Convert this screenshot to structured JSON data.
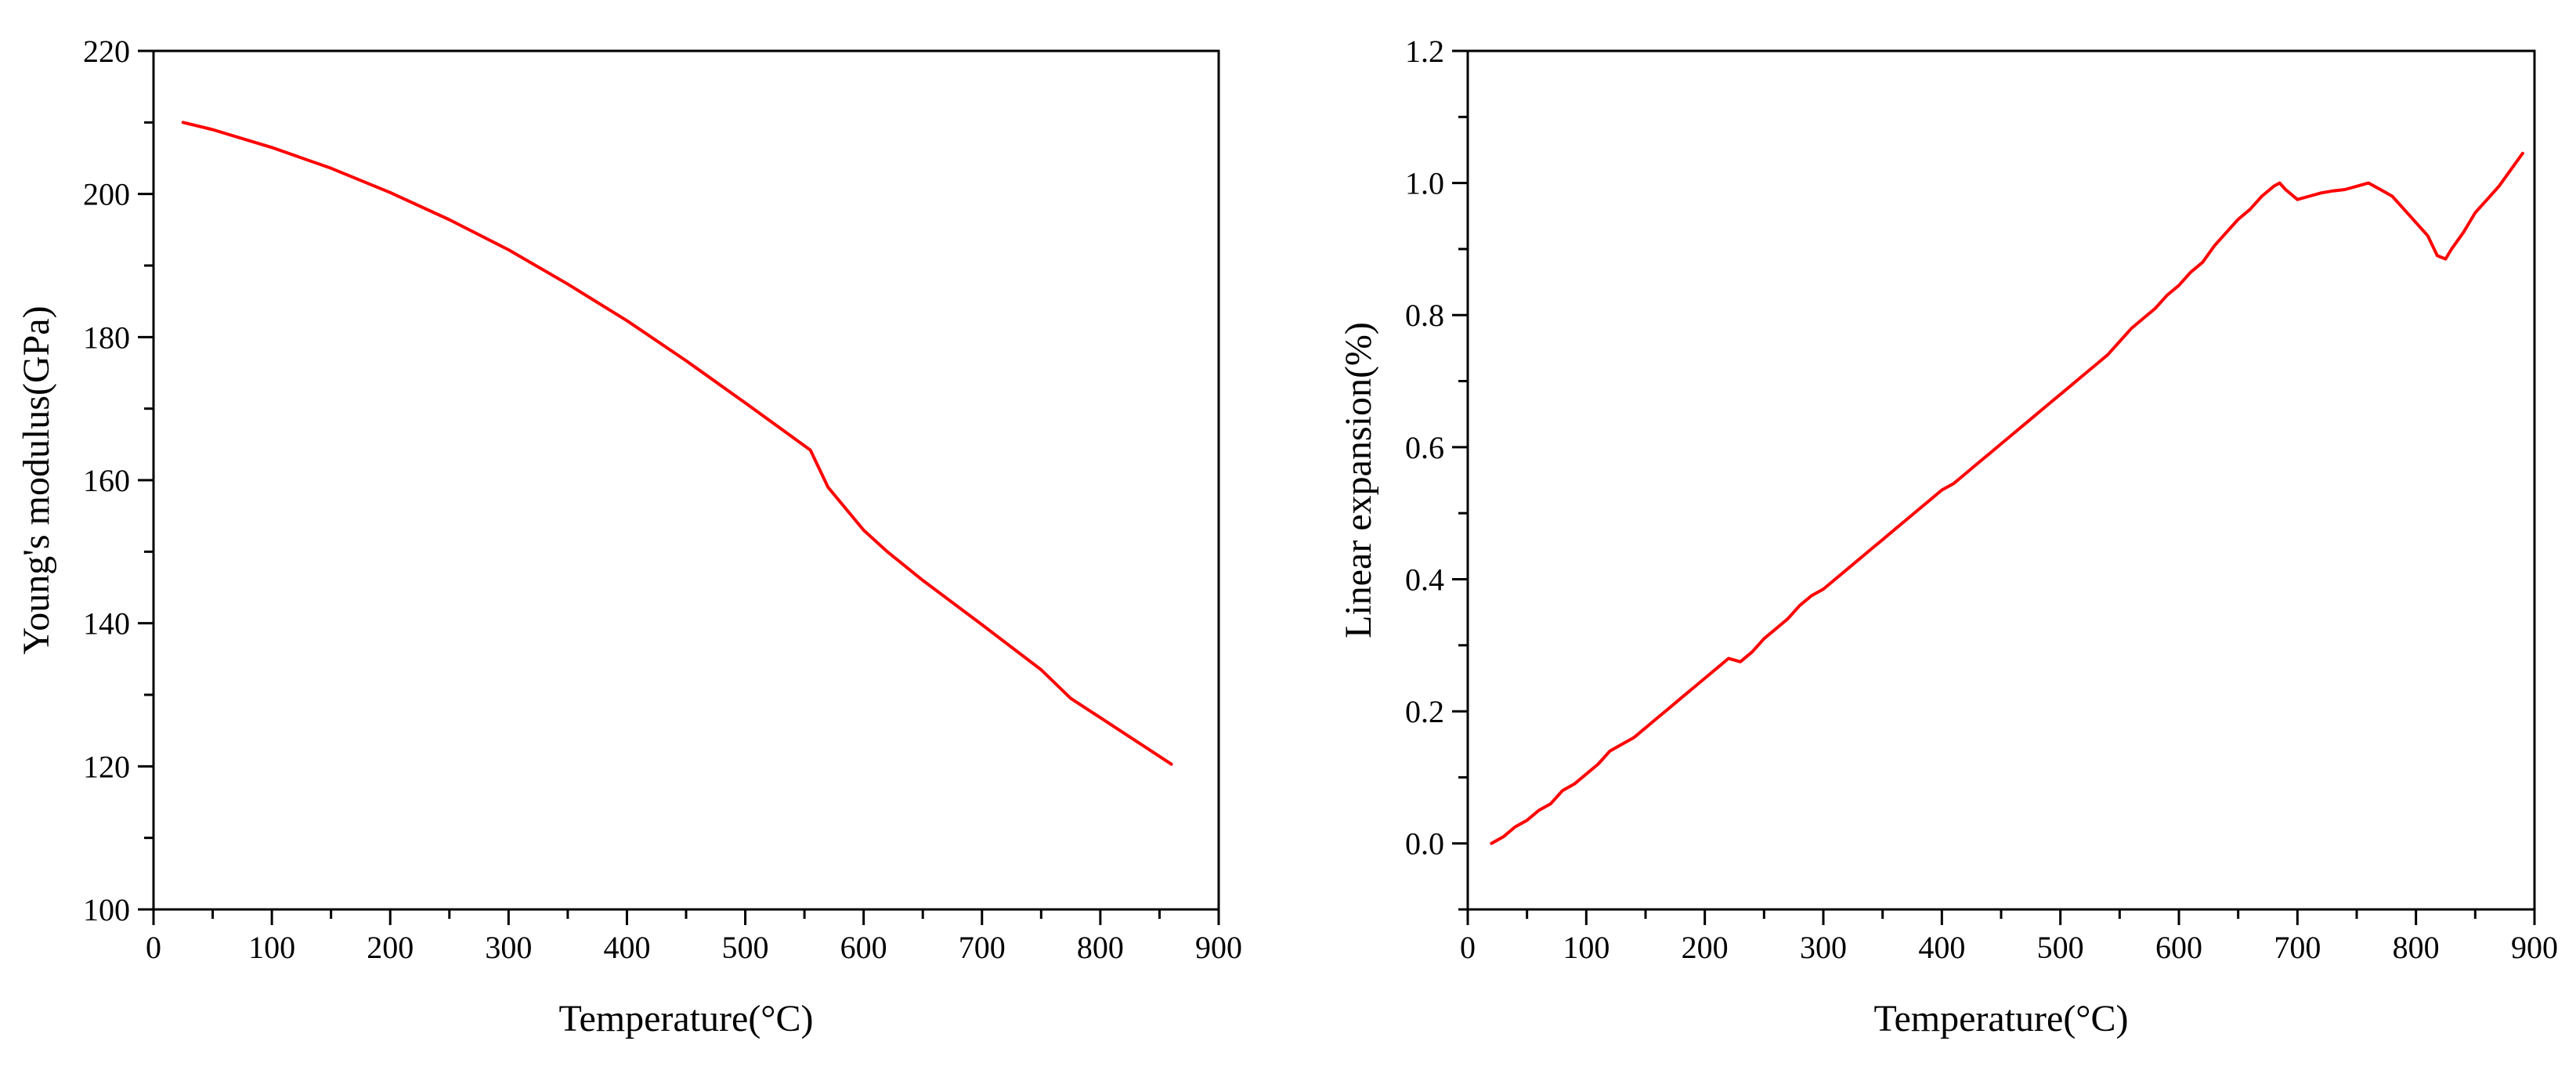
{
  "chart_data": [
    {
      "type": "line",
      "title": "",
      "xlabel": "Temperature(°C)",
      "ylabel": "Young's modulus(GPa)",
      "xlim": [
        0,
        900
      ],
      "ylim": [
        100,
        220
      ],
      "xticks": [
        0,
        100,
        200,
        300,
        400,
        500,
        600,
        700,
        800,
        900
      ],
      "yticks": [
        100,
        120,
        140,
        160,
        180,
        200,
        220
      ],
      "grid": false,
      "series": [
        {
          "name": "Young's modulus",
          "color": "#ff0000",
          "x": [
            25,
            50,
            100,
            150,
            200,
            250,
            300,
            350,
            400,
            450,
            500,
            555,
            570,
            600,
            620,
            650,
            700,
            750,
            775,
            800,
            860
          ],
          "y": [
            210,
            209,
            206.5,
            203.6,
            200.2,
            196.4,
            192.2,
            187.4,
            182.3,
            176.7,
            170.8,
            164.2,
            159,
            153,
            150,
            146,
            139.8,
            133.5,
            129.5,
            126.8,
            120.3
          ]
        }
      ]
    },
    {
      "type": "line",
      "title": "",
      "xlabel": "Temperature(°C)",
      "ylabel": "Linear expansion(%)",
      "xlim": [
        0,
        900
      ],
      "ylim": [
        -0.1,
        1.2
      ],
      "xticks": [
        0,
        100,
        200,
        300,
        400,
        500,
        600,
        700,
        800,
        900
      ],
      "yticks": [
        0.0,
        0.2,
        0.4,
        0.6,
        0.8,
        1.0,
        1.2
      ],
      "grid": false,
      "series": [
        {
          "name": "Linear expansion",
          "color": "#ff0000",
          "x": [
            20,
            30,
            40,
            50,
            60,
            70,
            80,
            90,
            100,
            110,
            120,
            130,
            140,
            150,
            160,
            170,
            180,
            190,
            200,
            210,
            220,
            230,
            240,
            250,
            260,
            270,
            280,
            290,
            300,
            310,
            320,
            330,
            340,
            350,
            360,
            370,
            380,
            390,
            400,
            410,
            420,
            430,
            440,
            450,
            460,
            470,
            480,
            490,
            500,
            510,
            520,
            530,
            540,
            550,
            560,
            570,
            580,
            590,
            600,
            610,
            620,
            630,
            640,
            650,
            660,
            670,
            680,
            685,
            690,
            700,
            710,
            720,
            730,
            740,
            750,
            760,
            770,
            780,
            790,
            800,
            810,
            818,
            825,
            830,
            840,
            850,
            860,
            870,
            880,
            890
          ],
          "y": [
            0.0,
            0.01,
            0.025,
            0.035,
            0.05,
            0.06,
            0.08,
            0.09,
            0.105,
            0.12,
            0.14,
            0.15,
            0.16,
            0.175,
            0.19,
            0.205,
            0.22,
            0.235,
            0.25,
            0.265,
            0.28,
            0.275,
            0.29,
            0.31,
            0.325,
            0.34,
            0.36,
            0.375,
            0.385,
            0.4,
            0.415,
            0.43,
            0.445,
            0.46,
            0.475,
            0.49,
            0.505,
            0.52,
            0.535,
            0.545,
            0.56,
            0.575,
            0.59,
            0.605,
            0.62,
            0.635,
            0.65,
            0.665,
            0.68,
            0.695,
            0.71,
            0.725,
            0.74,
            0.76,
            0.78,
            0.795,
            0.81,
            0.83,
            0.845,
            0.865,
            0.88,
            0.905,
            0.925,
            0.945,
            0.96,
            0.98,
            0.995,
            1.0,
            0.99,
            0.975,
            0.98,
            0.985,
            0.988,
            0.99,
            0.995,
            1.0,
            0.99,
            0.98,
            0.96,
            0.94,
            0.92,
            0.89,
            0.885,
            0.9,
            0.925,
            0.955,
            0.975,
            0.995,
            1.02,
            1.045
          ]
        }
      ]
    }
  ]
}
